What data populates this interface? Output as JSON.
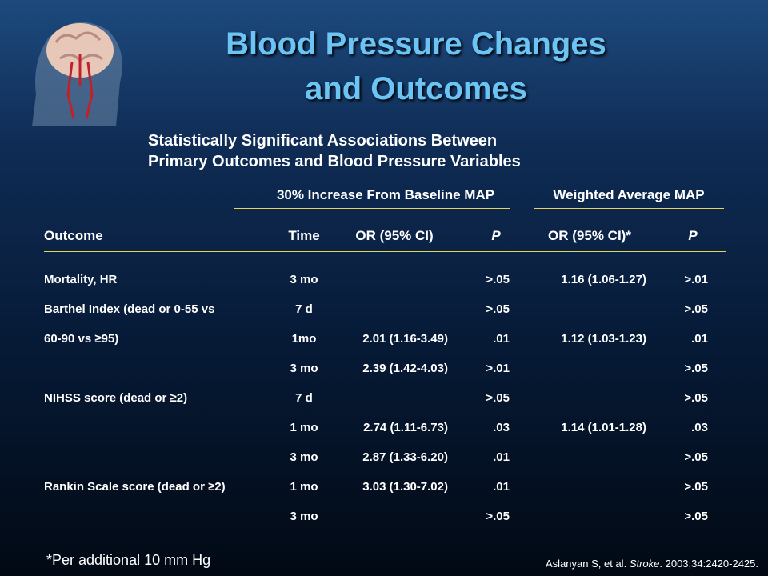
{
  "title": [
    "Blood Pressure Changes",
    "and Outcomes"
  ],
  "subtitle": [
    "Statistically Significant Associations Between",
    "Primary Outcomes and Blood Pressure Variables"
  ],
  "table": {
    "groups": [
      "30% Increase From Baseline MAP",
      "Weighted Average MAP"
    ],
    "columns": [
      "Outcome",
      "Time",
      "OR (95% CI)",
      "P",
      "OR (95% CI)*",
      "P"
    ],
    "rows": [
      [
        "Mortality, HR",
        "3 mo",
        null,
        ">.05",
        "1.16 (1.06-1.27)",
        ">.01"
      ],
      [
        "Barthel Index (dead or 0-55 vs",
        "7 d",
        null,
        ">.05",
        null,
        ">.05"
      ],
      [
        "60-90 vs ≥95)",
        "1mo",
        "2.01 (1.16-3.49)",
        ".01",
        "1.12 (1.03-1.23)",
        ".01"
      ],
      [
        null,
        "3 mo",
        "2.39 (1.42-4.03)",
        ">.01",
        null,
        ">.05"
      ],
      [
        "NIHSS score (dead or ≥2)",
        "7 d",
        null,
        ">.05",
        null,
        ">.05"
      ],
      [
        null,
        "1 mo",
        "2.74 (1.11-6.73)",
        ".03",
        "1.14 (1.01-1.28)",
        ".03"
      ],
      [
        null,
        "3 mo",
        "2.87 (1.33-6.20)",
        ".01",
        null,
        ">.05"
      ],
      [
        "Rankin Scale score (dead or ≥2)",
        "1 mo",
        "3.03 (1.30-7.02)",
        ".01",
        null,
        ">.05"
      ],
      [
        null,
        "3 mo",
        null,
        ">.05",
        null,
        ">.05"
      ]
    ]
  },
  "footnote": "*Per additional 10 mm Hg",
  "citation": {
    "authors": "Aslanyan S, et al.",
    "journal": "Stroke",
    "details": ". 2003;34:2420-2425."
  }
}
